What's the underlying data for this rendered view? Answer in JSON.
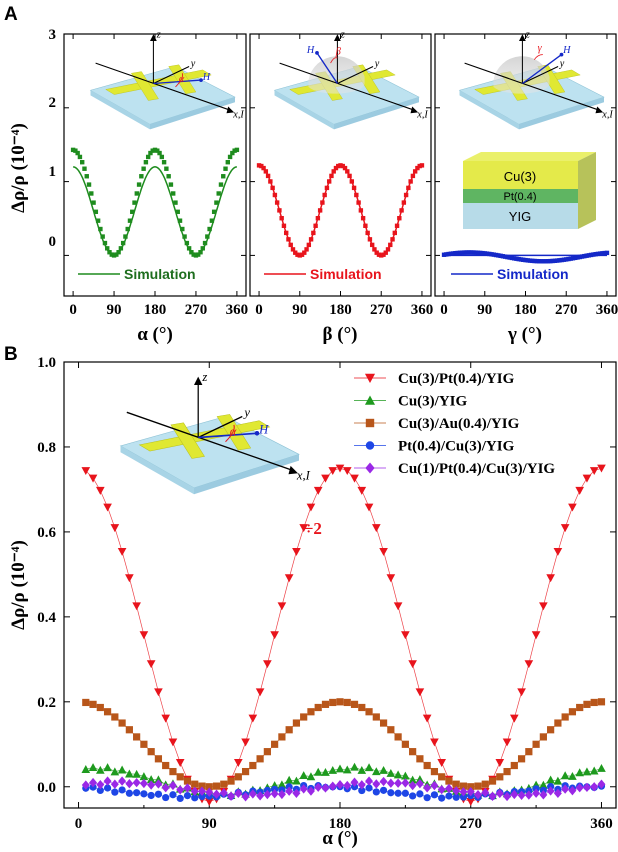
{
  "panel_labels": [
    "A",
    "B"
  ],
  "chart_data": [
    {
      "type": "scatter",
      "panel": "A",
      "xlabel": "α (°)",
      "ylabel": "Δρ/ρ (10⁻⁴)",
      "xlim": [
        -20,
        380
      ],
      "ylim": [
        -0.55,
        3.0
      ],
      "yticks": [
        0,
        1,
        2,
        3
      ],
      "xticks": [
        0,
        90,
        180,
        270,
        360
      ],
      "color": "#1e8c1e",
      "marker": "square",
      "amplitude": 1.43,
      "sim_amplitude": 1.2,
      "legend": "Simulation",
      "diagram_angle": "α"
    },
    {
      "type": "scatter",
      "panel": "A",
      "xlabel": "β (°)",
      "ylim": [
        -0.55,
        3.0
      ],
      "xticks": [
        0,
        90,
        180,
        270,
        360
      ],
      "color": "#e8141c",
      "marker": "square",
      "amplitude": 1.22,
      "legend": "Simulation",
      "diagram_angle": "β"
    },
    {
      "type": "scatter",
      "panel": "A",
      "xlabel": "γ (°)",
      "ylim": [
        -0.55,
        3.0
      ],
      "xticks": [
        0,
        90,
        180,
        270,
        360
      ],
      "color": "#1428c8",
      "marker": "square",
      "amplitude": 0.06,
      "legend": "Simulation",
      "diagram_angle": "γ",
      "stack_layers": [
        "Cu(3)",
        "Pt(0.4)",
        "YIG"
      ]
    },
    {
      "type": "scatter",
      "panel": "B",
      "xlabel": "α (°)",
      "ylabel": "Δρ/ρ (10⁻⁴)",
      "xlim": [
        -10,
        370
      ],
      "ylim": [
        -0.05,
        1.0
      ],
      "yticks": [
        "0.0",
        "0.2",
        "0.4",
        "0.6",
        "0.8",
        "1.0"
      ],
      "xticks": [
        0,
        90,
        180,
        270,
        360
      ],
      "annotation": "÷2",
      "series": [
        {
          "name": "Cu(3)/Pt(0.4)/YIG",
          "color": "#e8141c",
          "marker": "triangle-down",
          "amplitude": 0.75,
          "offset": -0.035,
          "phase": 0
        },
        {
          "name": "Cu(3)/YIG",
          "color": "#1e9a1e",
          "marker": "triangle-up",
          "amplitude": 0.03,
          "offset": 0.013,
          "phase": 1.2
        },
        {
          "name": "Cu(3)/Au(0.4)/YIG",
          "color": "#b8561a",
          "marker": "square",
          "amplitude": 0.2,
          "offset": 0.0,
          "phase": 0
        },
        {
          "name": "Pt(0.4)/Cu(3)/YIG",
          "color": "#1e46e6",
          "marker": "circle",
          "amplitude": 0.012,
          "offset": -0.012,
          "phase": 2.0
        },
        {
          "name": "Cu(1)/Pt(0.4)/Cu(3)/YIG",
          "color": "#9a28e6",
          "marker": "diamond",
          "amplitude": 0.015,
          "offset": -0.005,
          "phase": 0.6
        }
      ]
    }
  ],
  "diagram_labels": {
    "z": "z",
    "y": "y",
    "x": "x,I",
    "H": "H"
  }
}
